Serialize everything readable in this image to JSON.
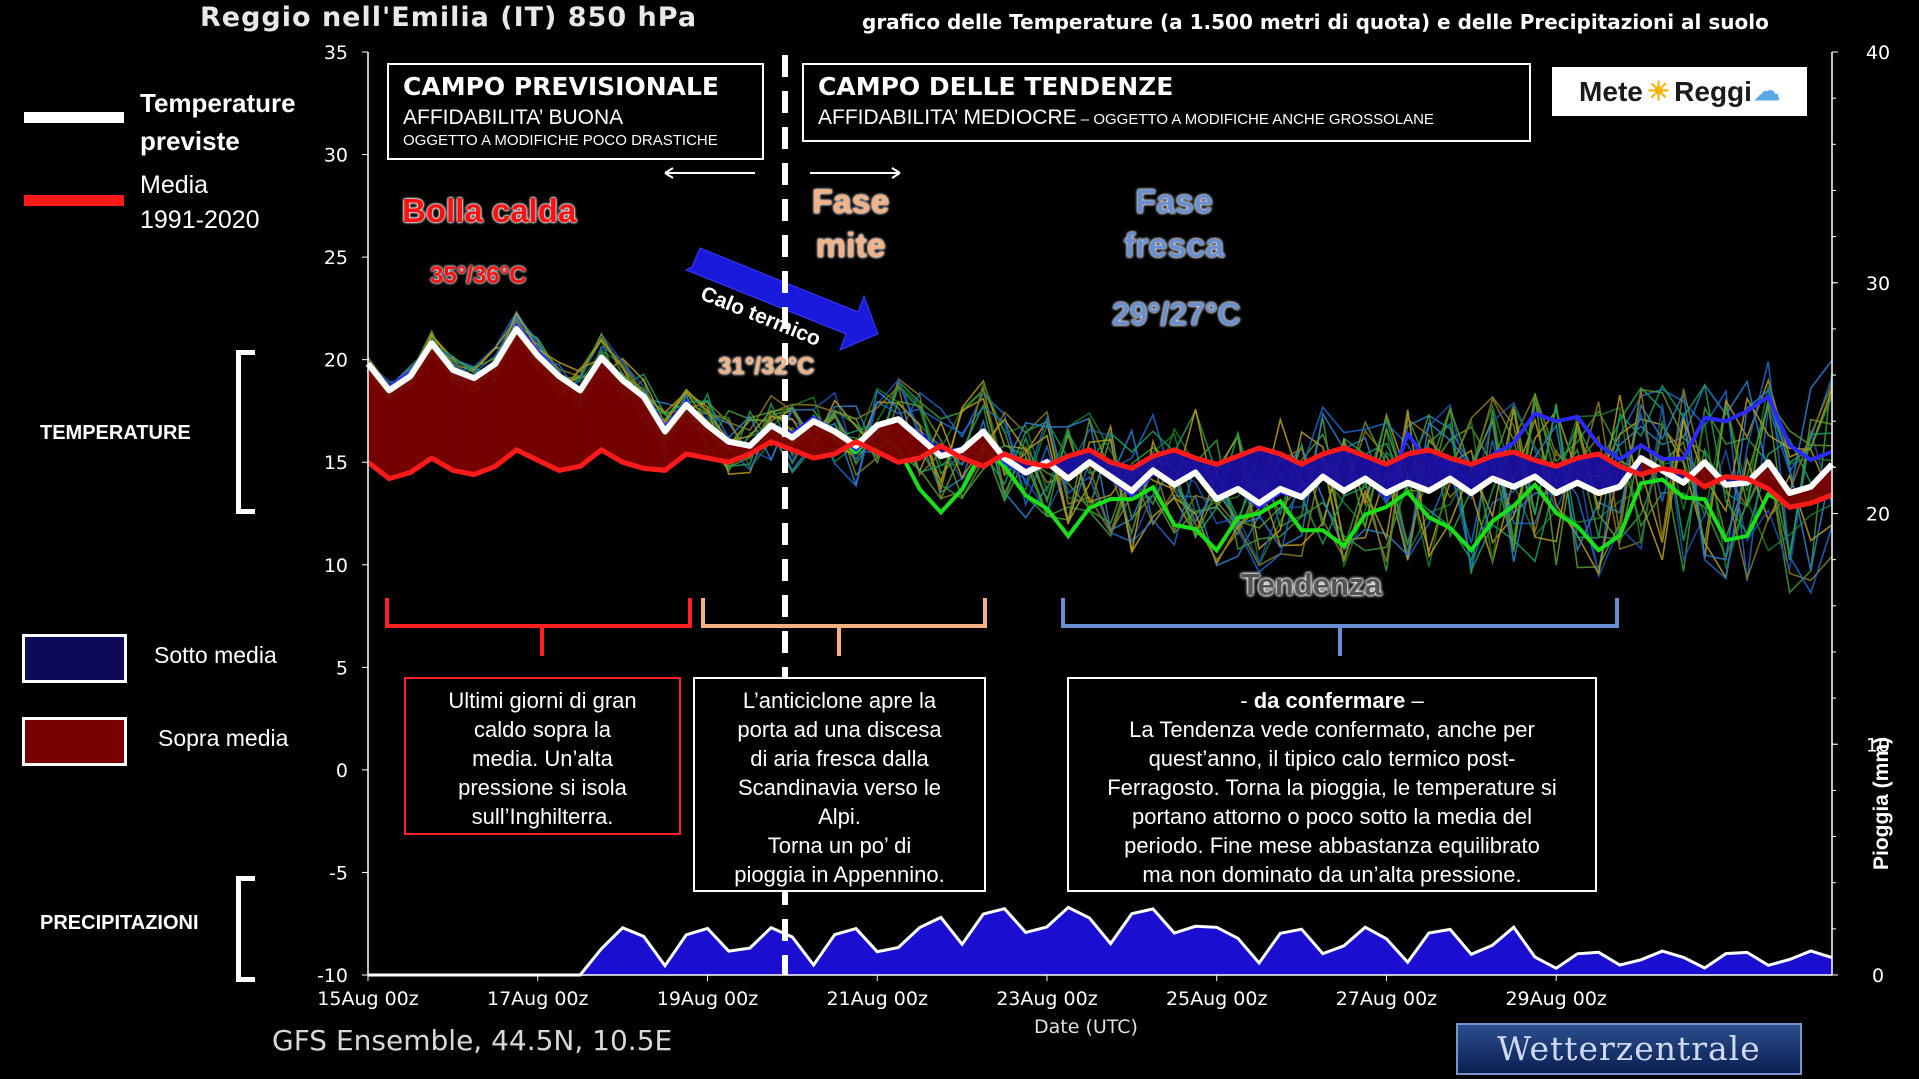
{
  "title": "Reggio nell'Emilia  (IT)  850 hPa",
  "subtitle": "grafico delle Temperature  (a 1.500 metri di quota) e delle Precipitazioni al suolo",
  "boxes": {
    "previsionale": {
      "heading": "CAMPO PREVISIONALE",
      "line1": "AFFIDABILITA’ BUONA",
      "line2": "OGGETTO A MODIFICHE POCO DRASTICHE"
    },
    "tendenze": {
      "heading": "CAMPO DELLE TENDENZE",
      "line1": "AFFIDABILITA’ MEDIOCRE",
      "line2": " – OGGETTO A MODIFICHE ANCHE GROSSOLANE"
    }
  },
  "logo": {
    "text_left": "Mete",
    "text_right": "Reggi",
    "sun": "sun-icon",
    "cloud": "cloud-icon"
  },
  "legend": {
    "previste": "Temperature previste",
    "previste_line1": "Temperature",
    "previste_line2": "previste",
    "media_line1": "Media",
    "media_line2": "1991-2020",
    "sotto": "Sotto media",
    "sopra": "Sopra media",
    "temperature": "TEMPERATURE",
    "precipitazioni": "PRECIPITAZIONI"
  },
  "annotations": {
    "bolla": "Bolla calda",
    "bolla_temp": "35°/36°C",
    "calo": "Calo termico",
    "mite_temp": "31°/32°C",
    "mite1": "Fase",
    "mite2": "mite",
    "fresca1": "Fase",
    "fresca2": "fresca",
    "fresca_temp": "29°/27°C",
    "tendenza": "Tendenza"
  },
  "descriptions": {
    "d1": [
      "Ultimi giorni di gran",
      "caldo sopra la",
      "media. Un’alta",
      "pressione si isola",
      "sull’Inghilterra."
    ],
    "d2": [
      "L’anticiclone apre la",
      "porta ad una discesa",
      "di aria fresca dalla",
      "Scandinavia verso le",
      "Alpi.",
      "Torna un po’ di",
      "pioggia in Appennino."
    ],
    "d3_bold": "da confermare",
    "d3_pre": "- ",
    "d3_post": " –",
    "d3": [
      "La Tendenza vede confermato, anche per",
      "quest’anno, il tipico calo termico post-",
      "Ferragosto. Torna la pioggia, le temperature si",
      "portano attorno o poco sotto la media del",
      "periodo. Fine mese abbastanza equilibrato",
      "ma non dominato da un’alta pressione."
    ]
  },
  "footer": "GFS Ensemble, 44.5N, 10.5E",
  "watermark": "Wetterzentrale",
  "xlabel": "Date (UTC)",
  "ylabel_right": "Pioggia (mm)",
  "colors": {
    "hot_fill": "#7a0000",
    "cold_fill": "#1a0fa0",
    "mean": "#ff1a1a",
    "forecast": "#ffffff",
    "ctrl_green": "#19e019",
    "ctrl_blue": "#2a2aff"
  },
  "chart_data": {
    "type": "line",
    "x_ticks": [
      "15Aug 00z",
      "17Aug 00z",
      "19Aug 00z",
      "21Aug 00z",
      "23Aug 00z",
      "25Aug 00z",
      "27Aug 00z",
      "29Aug 00z"
    ],
    "y_left": {
      "ticks": [
        35,
        30,
        25,
        20,
        15,
        10,
        5,
        0,
        -5,
        -10
      ],
      "ylim": [
        -10,
        35
      ]
    },
    "y_right": {
      "ticks": [
        40,
        30,
        20,
        10,
        0
      ],
      "ylim": [
        0,
        40
      ]
    },
    "steps_per_day": 4,
    "series": [
      {
        "name": "Temperature previste",
        "color": "#ffffff",
        "values": [
          19.8,
          18.5,
          19.2,
          20.8,
          19.5,
          19.1,
          19.8,
          21.5,
          20.2,
          19.2,
          18.5,
          20.1,
          19.0,
          18.2,
          16.5,
          17.8,
          16.8,
          16.0,
          15.8,
          16.8,
          16.2,
          17.0,
          16.5,
          15.8,
          16.8,
          17.1,
          16.2,
          15.3,
          15.6,
          16.5,
          15.2,
          14.5,
          15.0,
          14.2,
          15.0,
          14.3,
          13.6,
          14.6,
          13.9,
          14.5,
          13.2,
          13.7,
          13.0,
          13.7,
          13.3,
          14.3,
          13.6,
          14.2,
          13.5,
          14.0,
          13.6,
          14.2,
          13.5,
          14.2,
          13.8,
          14.3,
          13.5,
          14.0,
          13.5,
          13.8,
          15.2,
          14.6,
          14.0,
          15.0,
          13.9,
          14.0,
          15.0,
          13.5,
          13.8,
          14.9
        ]
      },
      {
        "name": "Media 1991-2020",
        "color": "#ff1a1a",
        "values": [
          15.0,
          14.2,
          14.5,
          15.2,
          14.6,
          14.4,
          14.8,
          15.6,
          15.1,
          14.6,
          14.8,
          15.6,
          15.0,
          14.7,
          14.6,
          15.4,
          15.2,
          15.0,
          15.4,
          16.0,
          15.6,
          15.2,
          15.4,
          16.0,
          15.5,
          15.0,
          15.2,
          15.8,
          15.2,
          14.8,
          15.4,
          15.0,
          14.8,
          15.3,
          15.6,
          15.0,
          14.7,
          15.3,
          15.6,
          15.2,
          14.9,
          15.3,
          15.7,
          15.4,
          14.9,
          15.4,
          15.7,
          15.3,
          14.9,
          15.4,
          15.6,
          15.2,
          14.9,
          15.3,
          15.5,
          15.1,
          14.8,
          15.2,
          15.4,
          14.8,
          14.4,
          14.7,
          14.5,
          13.8,
          14.3,
          14.2,
          13.7,
          12.8,
          13.0,
          13.4
        ]
      }
    ],
    "precip_right_axis": "Pioggia (mm)"
  }
}
